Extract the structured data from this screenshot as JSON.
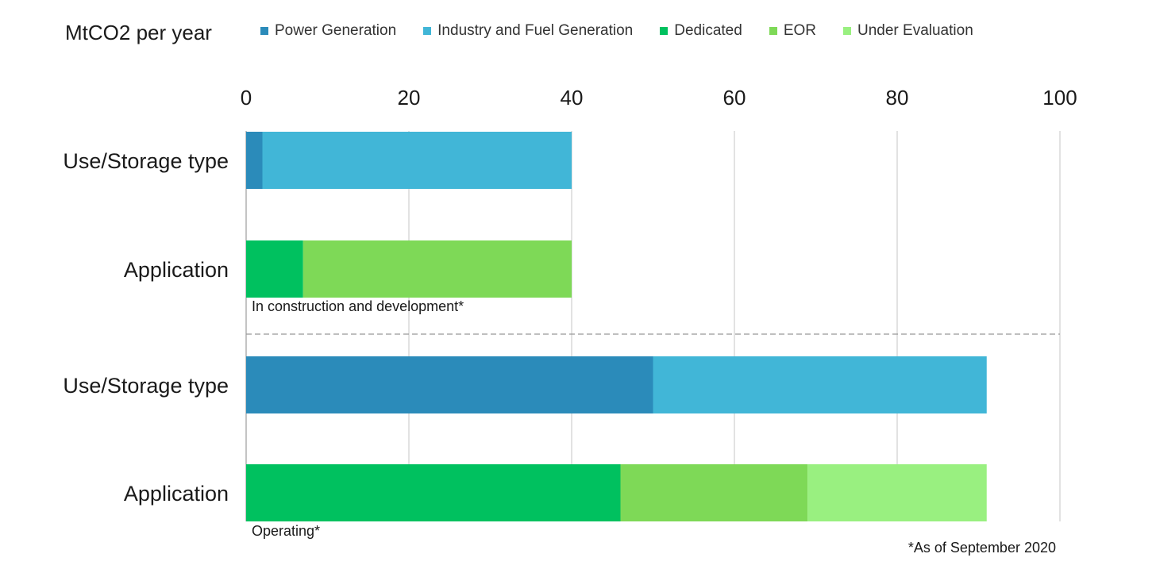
{
  "unit_label": "MtCO2 per year",
  "footnote": "*As of September 2020",
  "legend": [
    {
      "name": "Power Generation",
      "color": "#2b8bba"
    },
    {
      "name": "Industry and Fuel Generation",
      "color": "#41b6d7"
    },
    {
      "name": "Dedicated",
      "color": "#00c15f"
    },
    {
      "name": "EOR",
      "color": "#7ed957"
    },
    {
      "name": "Under Evaluation",
      "color": "#99f080"
    }
  ],
  "sections": [
    {
      "label": "In construction and development*"
    },
    {
      "label": "Operating*"
    }
  ],
  "chart_data": {
    "type": "bar",
    "orientation": "horizontal",
    "stacked": true,
    "xlim": [
      0,
      100
    ],
    "x_ticks": [
      "0",
      "20",
      "40",
      "60",
      "80",
      "100"
    ],
    "grid": "vertical",
    "legend_position": "top",
    "bars": [
      {
        "category": "Use/Storage type",
        "section": "In construction and development*",
        "segments": [
          {
            "series": "Power Generation",
            "value": 2
          },
          {
            "series": "Industry and Fuel Generation",
            "value": 38
          }
        ]
      },
      {
        "category": "Application",
        "section": "In construction and development*",
        "segments": [
          {
            "series": "Dedicated",
            "value": 7
          },
          {
            "series": "EOR",
            "value": 33
          }
        ]
      },
      {
        "category": "Use/Storage type",
        "section": "Operating*",
        "segments": [
          {
            "series": "Power Generation",
            "value": 50
          },
          {
            "series": "Industry and Fuel Generation",
            "value": 41
          }
        ]
      },
      {
        "category": "Application",
        "section": "Operating*",
        "segments": [
          {
            "series": "Dedicated",
            "value": 46
          },
          {
            "series": "EOR",
            "value": 23
          },
          {
            "series": "Under Evaluation",
            "value": 22
          }
        ]
      }
    ]
  }
}
